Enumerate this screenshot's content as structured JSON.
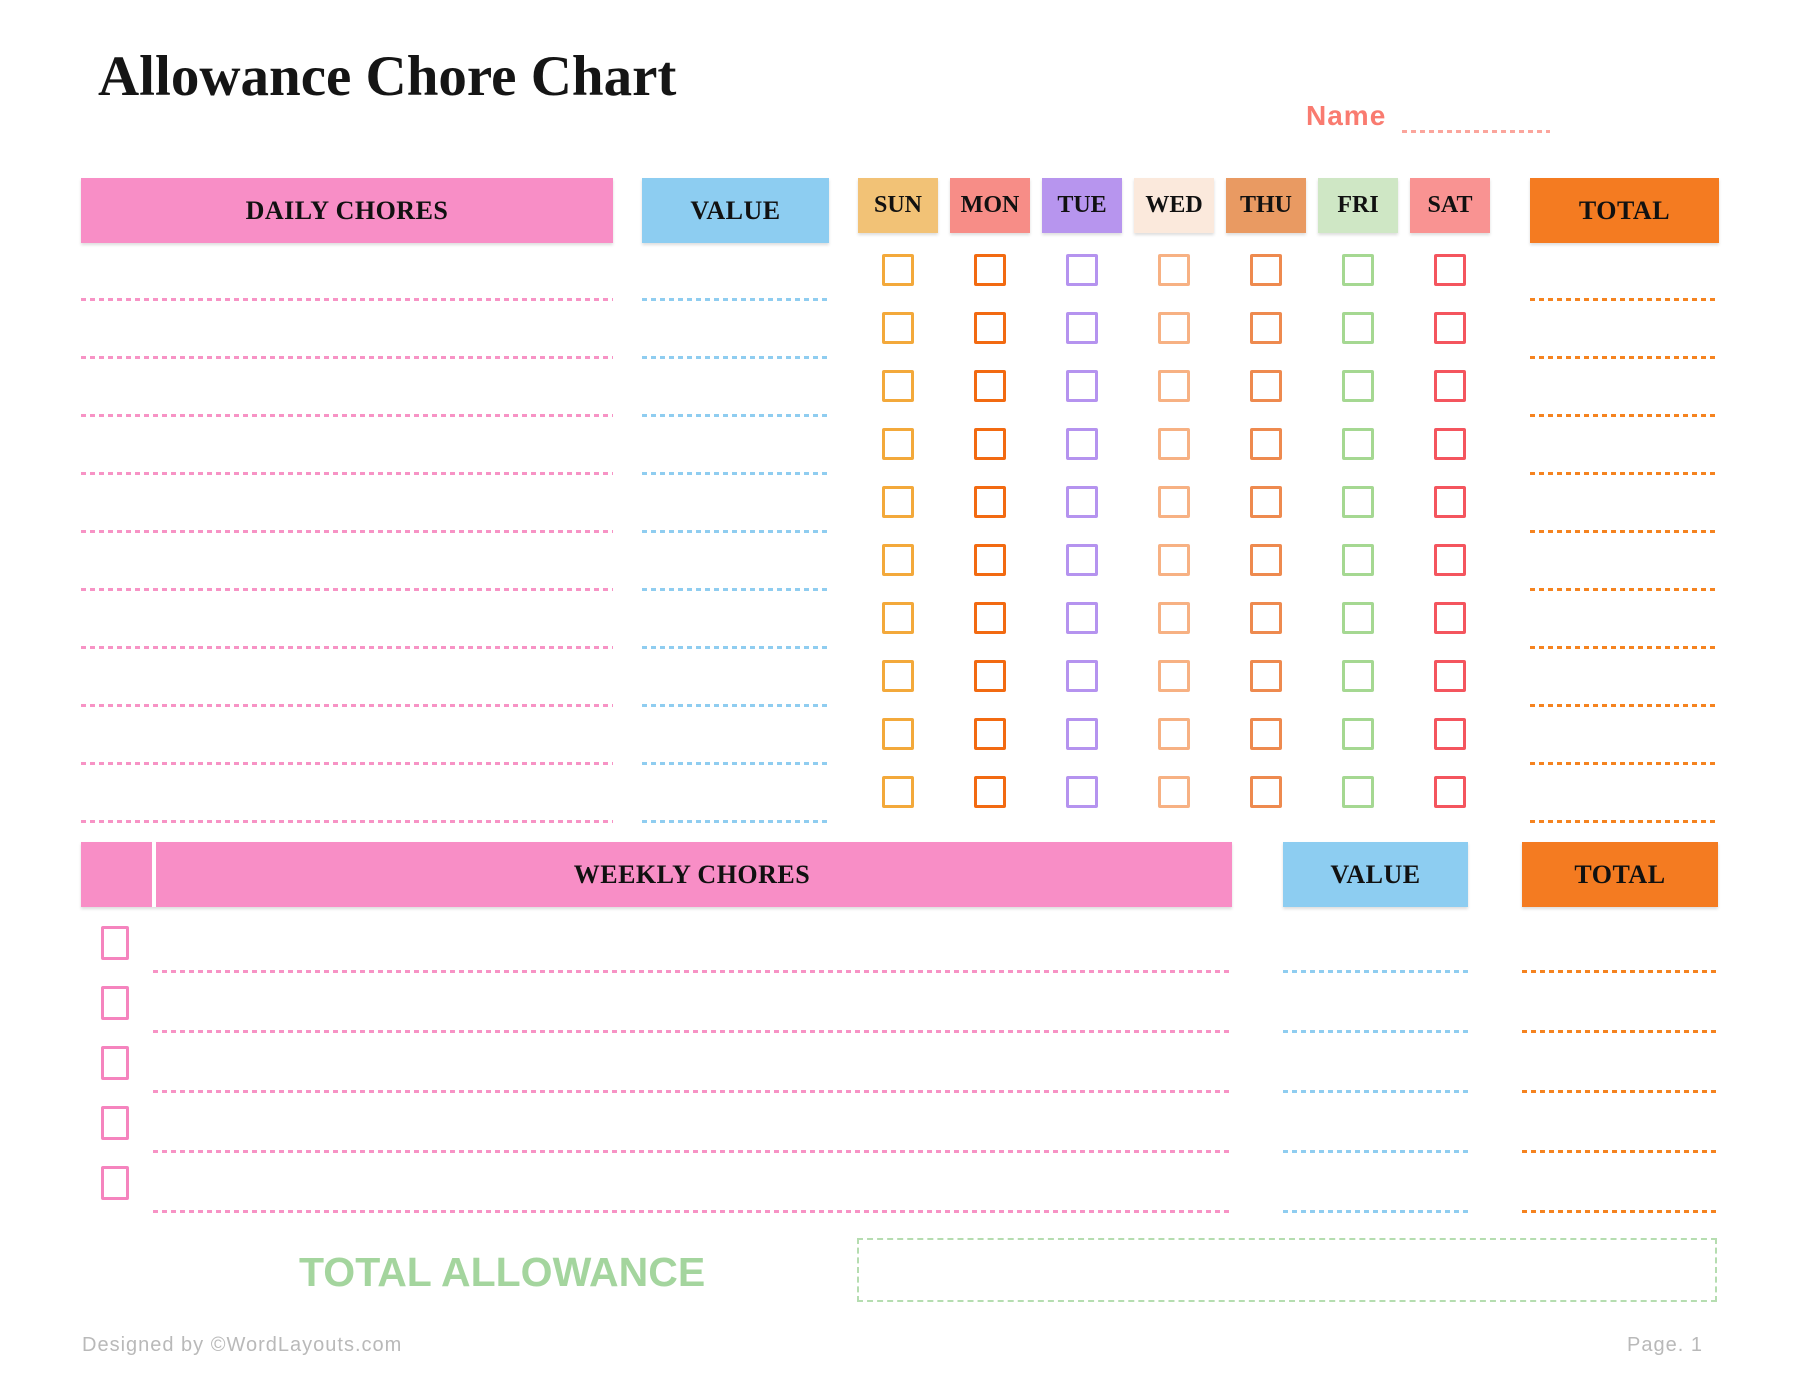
{
  "title": "Allowance Chore Chart",
  "name_field": {
    "label": "Name",
    "value": "",
    "accent_color": "#f97b70",
    "line_color": "#fba59c"
  },
  "daily": {
    "chores_header": "DAILY CHORES",
    "value_header": "VALUE",
    "total_header": "TOTAL",
    "header_colors": {
      "chores": "#f88ec6",
      "value": "#8dcdf1",
      "total": "#f47b21"
    },
    "line_colors": {
      "chores": "#f793c5",
      "value": "#8fcdf0",
      "total": "#f5831f"
    },
    "days": [
      {
        "label": "SUN",
        "header_color": "#f2c276",
        "checkbox_color": "#f3a93b"
      },
      {
        "label": "MON",
        "header_color": "#f78d87",
        "checkbox_color": "#f26a11"
      },
      {
        "label": "TUE",
        "header_color": "#b795ee",
        "checkbox_color": "#b593ef"
      },
      {
        "label": "WED",
        "header_color": "#fbe9dc",
        "checkbox_color": "#f7b183"
      },
      {
        "label": "THU",
        "header_color": "#e99a62",
        "checkbox_color": "#ee8a4f"
      },
      {
        "label": "FRI",
        "header_color": "#cfe7c5",
        "checkbox_color": "#a5d892"
      },
      {
        "label": "SAT",
        "header_color": "#f99392",
        "checkbox_color": "#f4555e"
      }
    ],
    "rows": [
      {
        "chore": "",
        "value": "",
        "total": "",
        "checked": [
          false,
          false,
          false,
          false,
          false,
          false,
          false
        ]
      },
      {
        "chore": "",
        "value": "",
        "total": "",
        "checked": [
          false,
          false,
          false,
          false,
          false,
          false,
          false
        ]
      },
      {
        "chore": "",
        "value": "",
        "total": "",
        "checked": [
          false,
          false,
          false,
          false,
          false,
          false,
          false
        ]
      },
      {
        "chore": "",
        "value": "",
        "total": "",
        "checked": [
          false,
          false,
          false,
          false,
          false,
          false,
          false
        ]
      },
      {
        "chore": "",
        "value": "",
        "total": "",
        "checked": [
          false,
          false,
          false,
          false,
          false,
          false,
          false
        ]
      },
      {
        "chore": "",
        "value": "",
        "total": "",
        "checked": [
          false,
          false,
          false,
          false,
          false,
          false,
          false
        ]
      },
      {
        "chore": "",
        "value": "",
        "total": "",
        "checked": [
          false,
          false,
          false,
          false,
          false,
          false,
          false
        ]
      },
      {
        "chore": "",
        "value": "",
        "total": "",
        "checked": [
          false,
          false,
          false,
          false,
          false,
          false,
          false
        ]
      },
      {
        "chore": "",
        "value": "",
        "total": "",
        "checked": [
          false,
          false,
          false,
          false,
          false,
          false,
          false
        ]
      },
      {
        "chore": "",
        "value": "",
        "total": "",
        "checked": [
          false,
          false,
          false,
          false,
          false,
          false,
          false
        ]
      }
    ]
  },
  "weekly": {
    "header": "WEEKLY CHORES",
    "value_header": "VALUE",
    "total_header": "TOTAL",
    "header_color": "#f88ec6",
    "value_header_color": "#8dcdf1",
    "total_header_color": "#f47b21",
    "checkbox_color": "#f584be",
    "line_colors": {
      "chores": "#f793c5",
      "value": "#8fcdf0",
      "total": "#f5831f"
    },
    "rows": [
      {
        "checked": false,
        "chore": "",
        "value": "",
        "total": ""
      },
      {
        "checked": false,
        "chore": "",
        "value": "",
        "total": ""
      },
      {
        "checked": false,
        "chore": "",
        "value": "",
        "total": ""
      },
      {
        "checked": false,
        "chore": "",
        "value": "",
        "total": ""
      },
      {
        "checked": false,
        "chore": "",
        "value": "",
        "total": ""
      }
    ]
  },
  "summary": {
    "label": "TOTAL ALLOWANCE",
    "value": "",
    "label_color": "#a4d59e",
    "box_border_color": "#b5ddb0"
  },
  "footer": {
    "credit": "Designed by ©WordLayouts.com",
    "page": "Page. 1"
  }
}
